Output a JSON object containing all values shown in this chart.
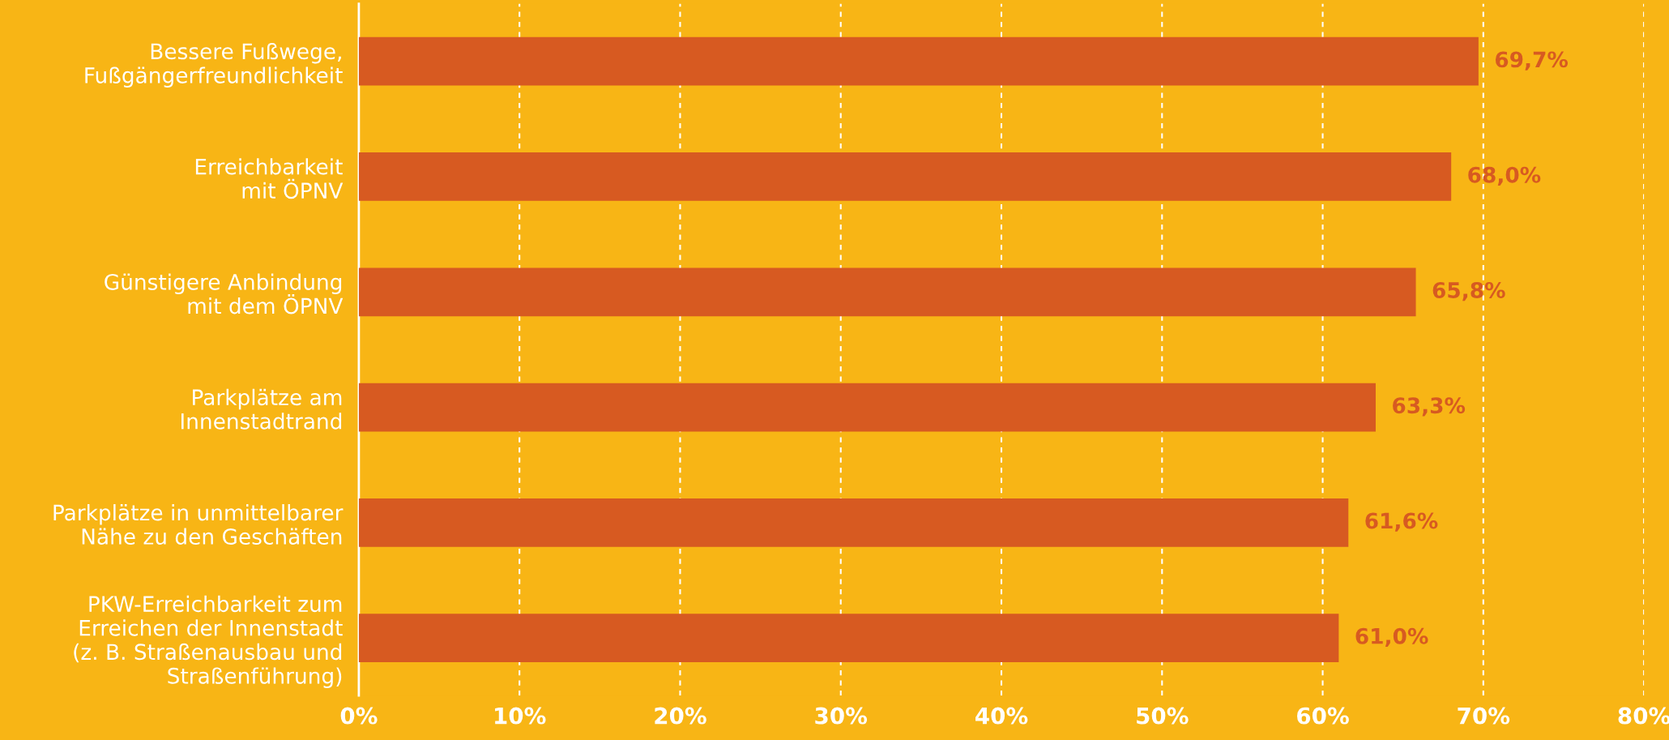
{
  "chart_data": {
    "type": "bar",
    "orientation": "horizontal",
    "categories": [
      "Bessere Fußwege,\nFußgängerfreundlichkeit",
      "Erreichbarkeit\nmit ÖPNV",
      "Günstigere Anbindung\nmit dem ÖPNV",
      "Parkplätze am\nInnenstadtrand",
      "Parkplätze in unmittelbarer\nNähe zu den Geschäften",
      "PKW-Erreichbarkeit zum\nErreichen der Innenstadt\n(z. B. Straßenausbau und\nStraßenführung)"
    ],
    "values": [
      69.7,
      68.0,
      65.8,
      63.3,
      61.6,
      61.0
    ],
    "value_labels": [
      "69,7%",
      "68,0%",
      "65,8%",
      "63,3%",
      "61,6%",
      "61,0%"
    ],
    "color": "#d75a21",
    "xlim": [
      0,
      80
    ],
    "xticks": [
      {
        "value": 0,
        "label": "0%"
      },
      {
        "value": 10,
        "label": "10%"
      },
      {
        "value": 20,
        "label": "20%"
      },
      {
        "value": 30,
        "label": "30%"
      },
      {
        "value": 40,
        "label": "40%"
      },
      {
        "value": 50,
        "label": "50%"
      },
      {
        "value": 60,
        "label": "60%"
      },
      {
        "value": 70,
        "label": "70%"
      },
      {
        "value": 80,
        "label": "80%"
      }
    ],
    "grid": "x",
    "legend": false
  }
}
